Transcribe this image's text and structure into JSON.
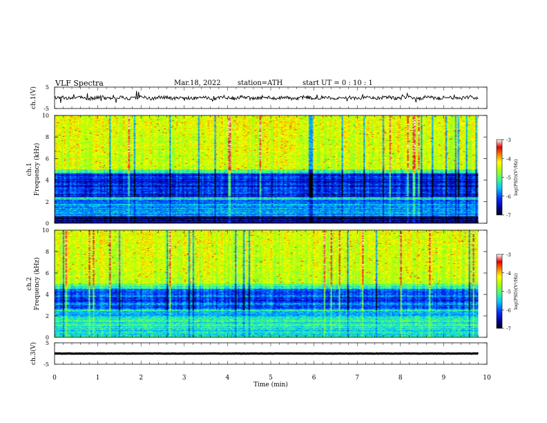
{
  "header": {
    "title": "VLF  Spectra",
    "date": "Mar.18, 2022",
    "station": "station=ATH",
    "start": "start  UT  =   0  : 10 : 1"
  },
  "chart_data": {
    "type": "heatmap",
    "x_axis": {
      "label": "Time  (min)",
      "range": [
        0,
        10
      ],
      "ticks": [
        0,
        1,
        2,
        3,
        4,
        5,
        6,
        7,
        8,
        9,
        10
      ],
      "data_end": 9.8
    },
    "panels": [
      {
        "id": "ch1-waveform",
        "kind": "line",
        "ylabel": "ch.1(V)",
        "ylim": [
          -5,
          5
        ],
        "yticks": [
          5,
          -5
        ],
        "color": "#000000"
      },
      {
        "id": "ch1-spectrogram",
        "kind": "spectrogram",
        "ylabel_top": "ch.1",
        "ylabel": "Frequency  (kHz)",
        "ylim": [
          0,
          10
        ],
        "yticks": [
          0,
          2,
          4,
          6,
          8,
          10
        ],
        "colorbar": {
          "label": "log(PSD)(V²/Hz)",
          "range": [
            -7,
            -3
          ],
          "ticks": [
            -3,
            -4,
            -5,
            -6,
            -7
          ]
        }
      },
      {
        "id": "ch2-spectrogram",
        "kind": "spectrogram",
        "ylabel_top": "ch.2",
        "ylabel": "Frequency  (kHz)",
        "ylim": [
          0,
          10
        ],
        "yticks": [
          0,
          2,
          4,
          6,
          8,
          10
        ],
        "colorbar": {
          "label": "log(PSD)(V²/Hz)",
          "range": [
            -7,
            -3
          ],
          "ticks": [
            -3,
            -4,
            -5,
            -6,
            -7
          ]
        }
      },
      {
        "id": "ch3-waveform",
        "kind": "line",
        "ylabel": "ch.3(V)",
        "ylim": [
          -5,
          5
        ],
        "yticks": [
          5,
          -5
        ],
        "color": "#000000"
      }
    ],
    "colormap": [
      "#000000",
      "#0000a0",
      "#0030ff",
      "#00c8ff",
      "#40ff80",
      "#b0ff00",
      "#ffff00",
      "#ff8000",
      "#e00000",
      "#ffffff"
    ]
  }
}
